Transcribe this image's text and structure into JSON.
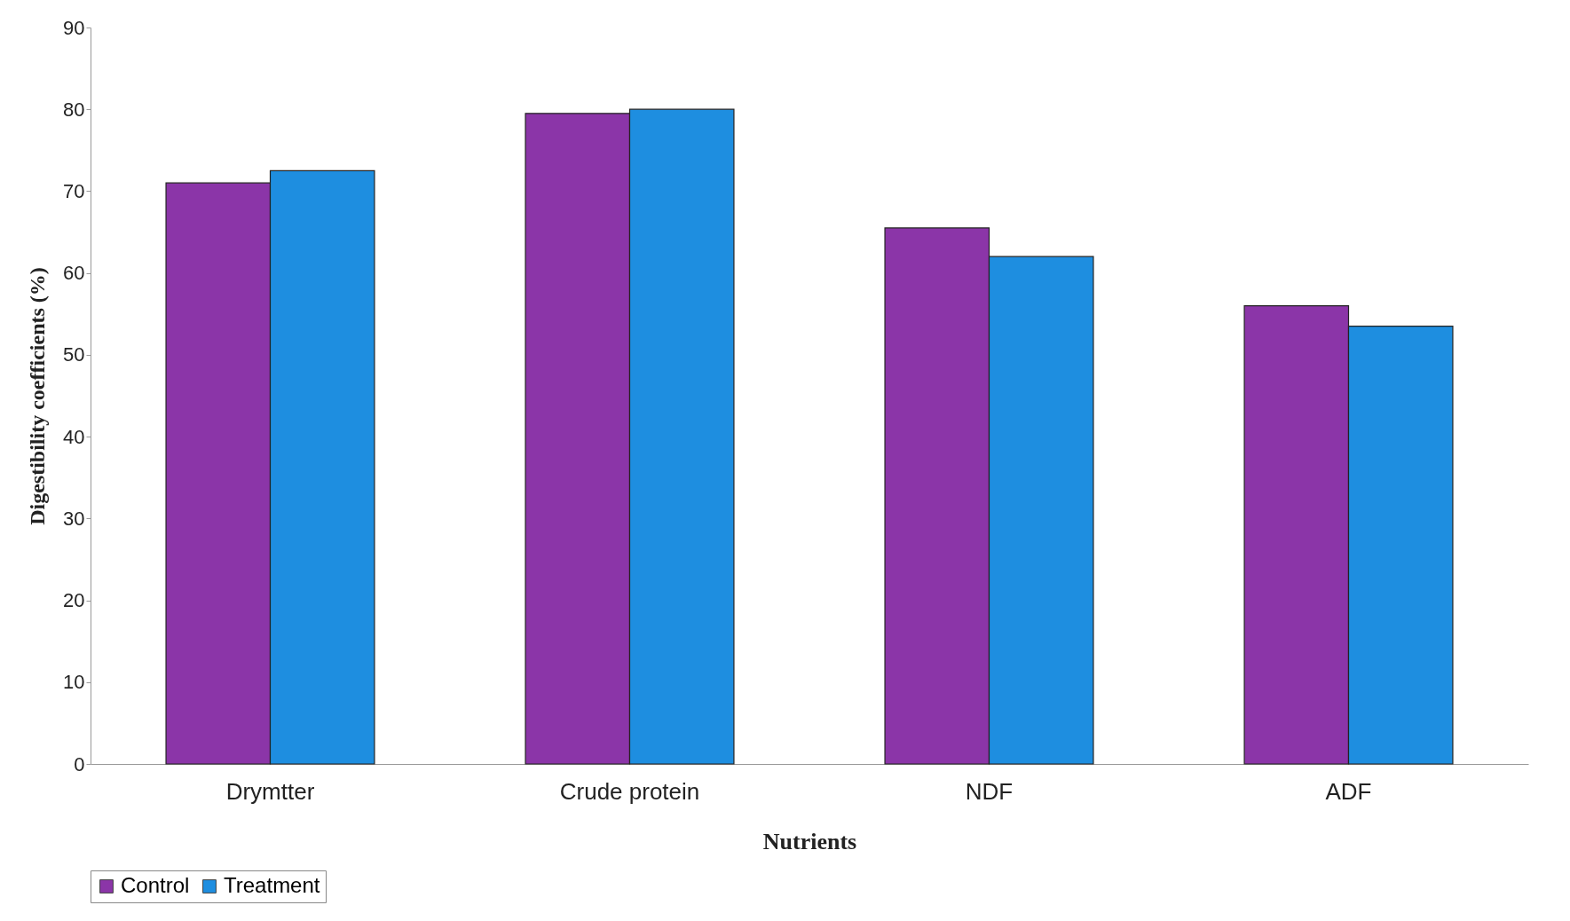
{
  "chart_data": {
    "type": "bar",
    "categories": [
      "Drymtter",
      "Crude protein",
      "NDF",
      "ADF"
    ],
    "series": [
      {
        "name": "Control",
        "color": "#8b35a8",
        "values": [
          71,
          79.5,
          65.5,
          56
        ]
      },
      {
        "name": "Treatment",
        "color": "#1e8ee0",
        "values": [
          72.5,
          80,
          62,
          53.5
        ]
      }
    ],
    "xlabel": "Nutrients",
    "ylabel": "Digestibility coefficients (%)",
    "ylim": [
      0,
      90
    ],
    "yticks": [
      0,
      10,
      20,
      30,
      40,
      50,
      60,
      70,
      80,
      90
    ],
    "legend": "bottom"
  }
}
